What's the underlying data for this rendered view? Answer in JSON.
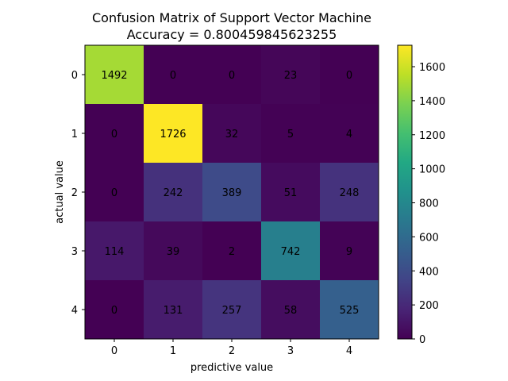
{
  "chart_data": {
    "type": "heatmap",
    "title": "Confusion Matrix of Support Vector Machine",
    "subtitle": "Accuracy = 0.800459845623255",
    "xlabel": "predictive value",
    "ylabel": "actual value",
    "x_categories": [
      "0",
      "1",
      "2",
      "3",
      "4"
    ],
    "y_categories": [
      "0",
      "1",
      "2",
      "3",
      "4"
    ],
    "values": [
      [
        1492,
        0,
        0,
        23,
        0
      ],
      [
        0,
        1726,
        32,
        5,
        4
      ],
      [
        0,
        242,
        389,
        51,
        248
      ],
      [
        114,
        39,
        2,
        742,
        9
      ],
      [
        0,
        131,
        257,
        58,
        525
      ]
    ],
    "colormap": "viridis",
    "colorbar": {
      "range": [
        0,
        1726
      ],
      "ticks": [
        0,
        200,
        400,
        600,
        800,
        1000,
        1200,
        1400,
        1600
      ],
      "position": "right"
    },
    "grid": false
  }
}
